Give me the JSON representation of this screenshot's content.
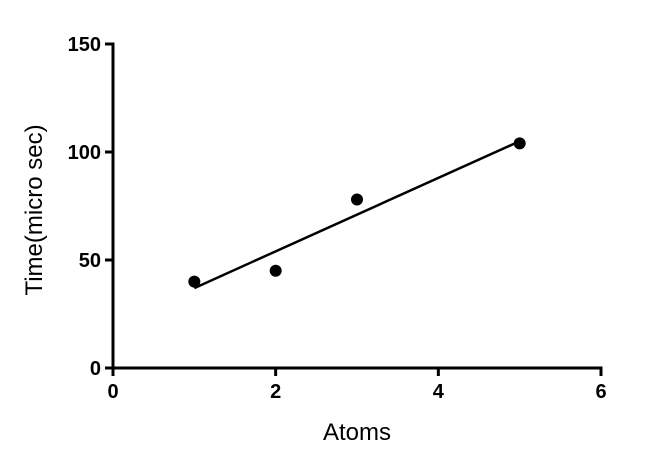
{
  "chart_data": {
    "type": "scatter",
    "xlabel": "Atoms",
    "ylabel": "Time(micro sec)",
    "xlim": [
      0,
      6
    ],
    "ylim": [
      0,
      150
    ],
    "x_ticks": [
      0,
      2,
      4,
      6
    ],
    "y_ticks": [
      0,
      50,
      100,
      150
    ],
    "grid": false,
    "legend": "none",
    "points": [
      {
        "x": 1,
        "y": 40
      },
      {
        "x": 2,
        "y": 45
      },
      {
        "x": 3,
        "y": 78
      },
      {
        "x": 5,
        "y": 104
      }
    ],
    "fit_line": {
      "x": [
        1,
        5
      ],
      "y": [
        37,
        105
      ]
    },
    "colors": {
      "points": "#000000",
      "line": "#000000",
      "axes": "#000000"
    }
  }
}
